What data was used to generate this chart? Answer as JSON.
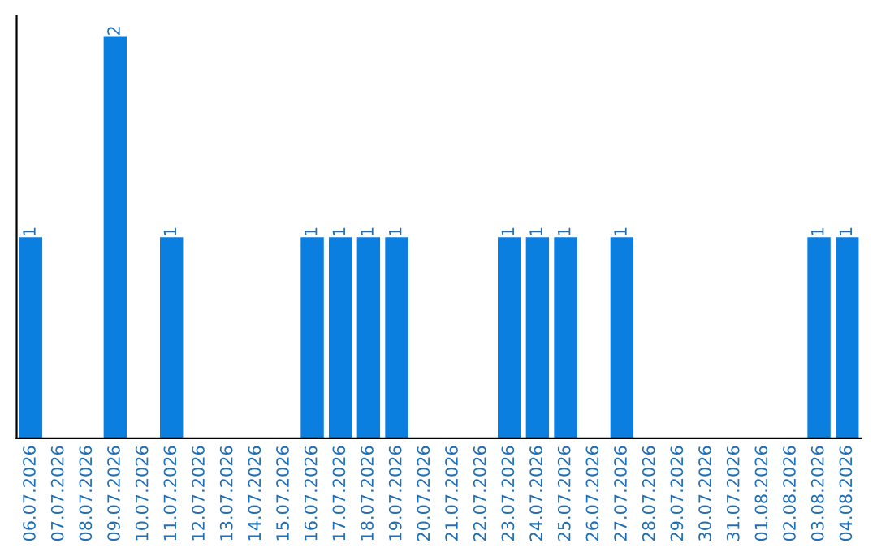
{
  "chart_data": {
    "type": "bar",
    "categories": [
      "06.07.2026",
      "07.07.2026",
      "08.07.2026",
      "09.07.2026",
      "10.07.2026",
      "11.07.2026",
      "12.07.2026",
      "13.07.2026",
      "14.07.2026",
      "15.07.2026",
      "16.07.2026",
      "17.07.2026",
      "18.07.2026",
      "19.07.2026",
      "20.07.2026",
      "21.07.2026",
      "22.07.2026",
      "23.07.2026",
      "24.07.2026",
      "25.07.2026",
      "26.07.2026",
      "27.07.2026",
      "28.07.2026",
      "29.07.2026",
      "30.07.2026",
      "31.07.2026",
      "01.08.2026",
      "02.08.2026",
      "03.08.2026",
      "04.08.2026"
    ],
    "values": [
      1,
      0,
      0,
      2,
      0,
      1,
      0,
      0,
      0,
      0,
      1,
      1,
      1,
      1,
      0,
      0,
      0,
      1,
      1,
      1,
      0,
      1,
      0,
      0,
      0,
      0,
      0,
      0,
      1,
      1
    ],
    "value_labels": [
      "1",
      null,
      null,
      "2",
      null,
      "1",
      null,
      null,
      null,
      null,
      "1",
      "1",
      "1",
      "1",
      null,
      null,
      null,
      "1",
      "1",
      "1",
      null,
      "1",
      null,
      null,
      null,
      null,
      null,
      null,
      "1",
      "1"
    ],
    "color": "#0a7fe0",
    "tick_labels": "x",
    "grid": false
  }
}
